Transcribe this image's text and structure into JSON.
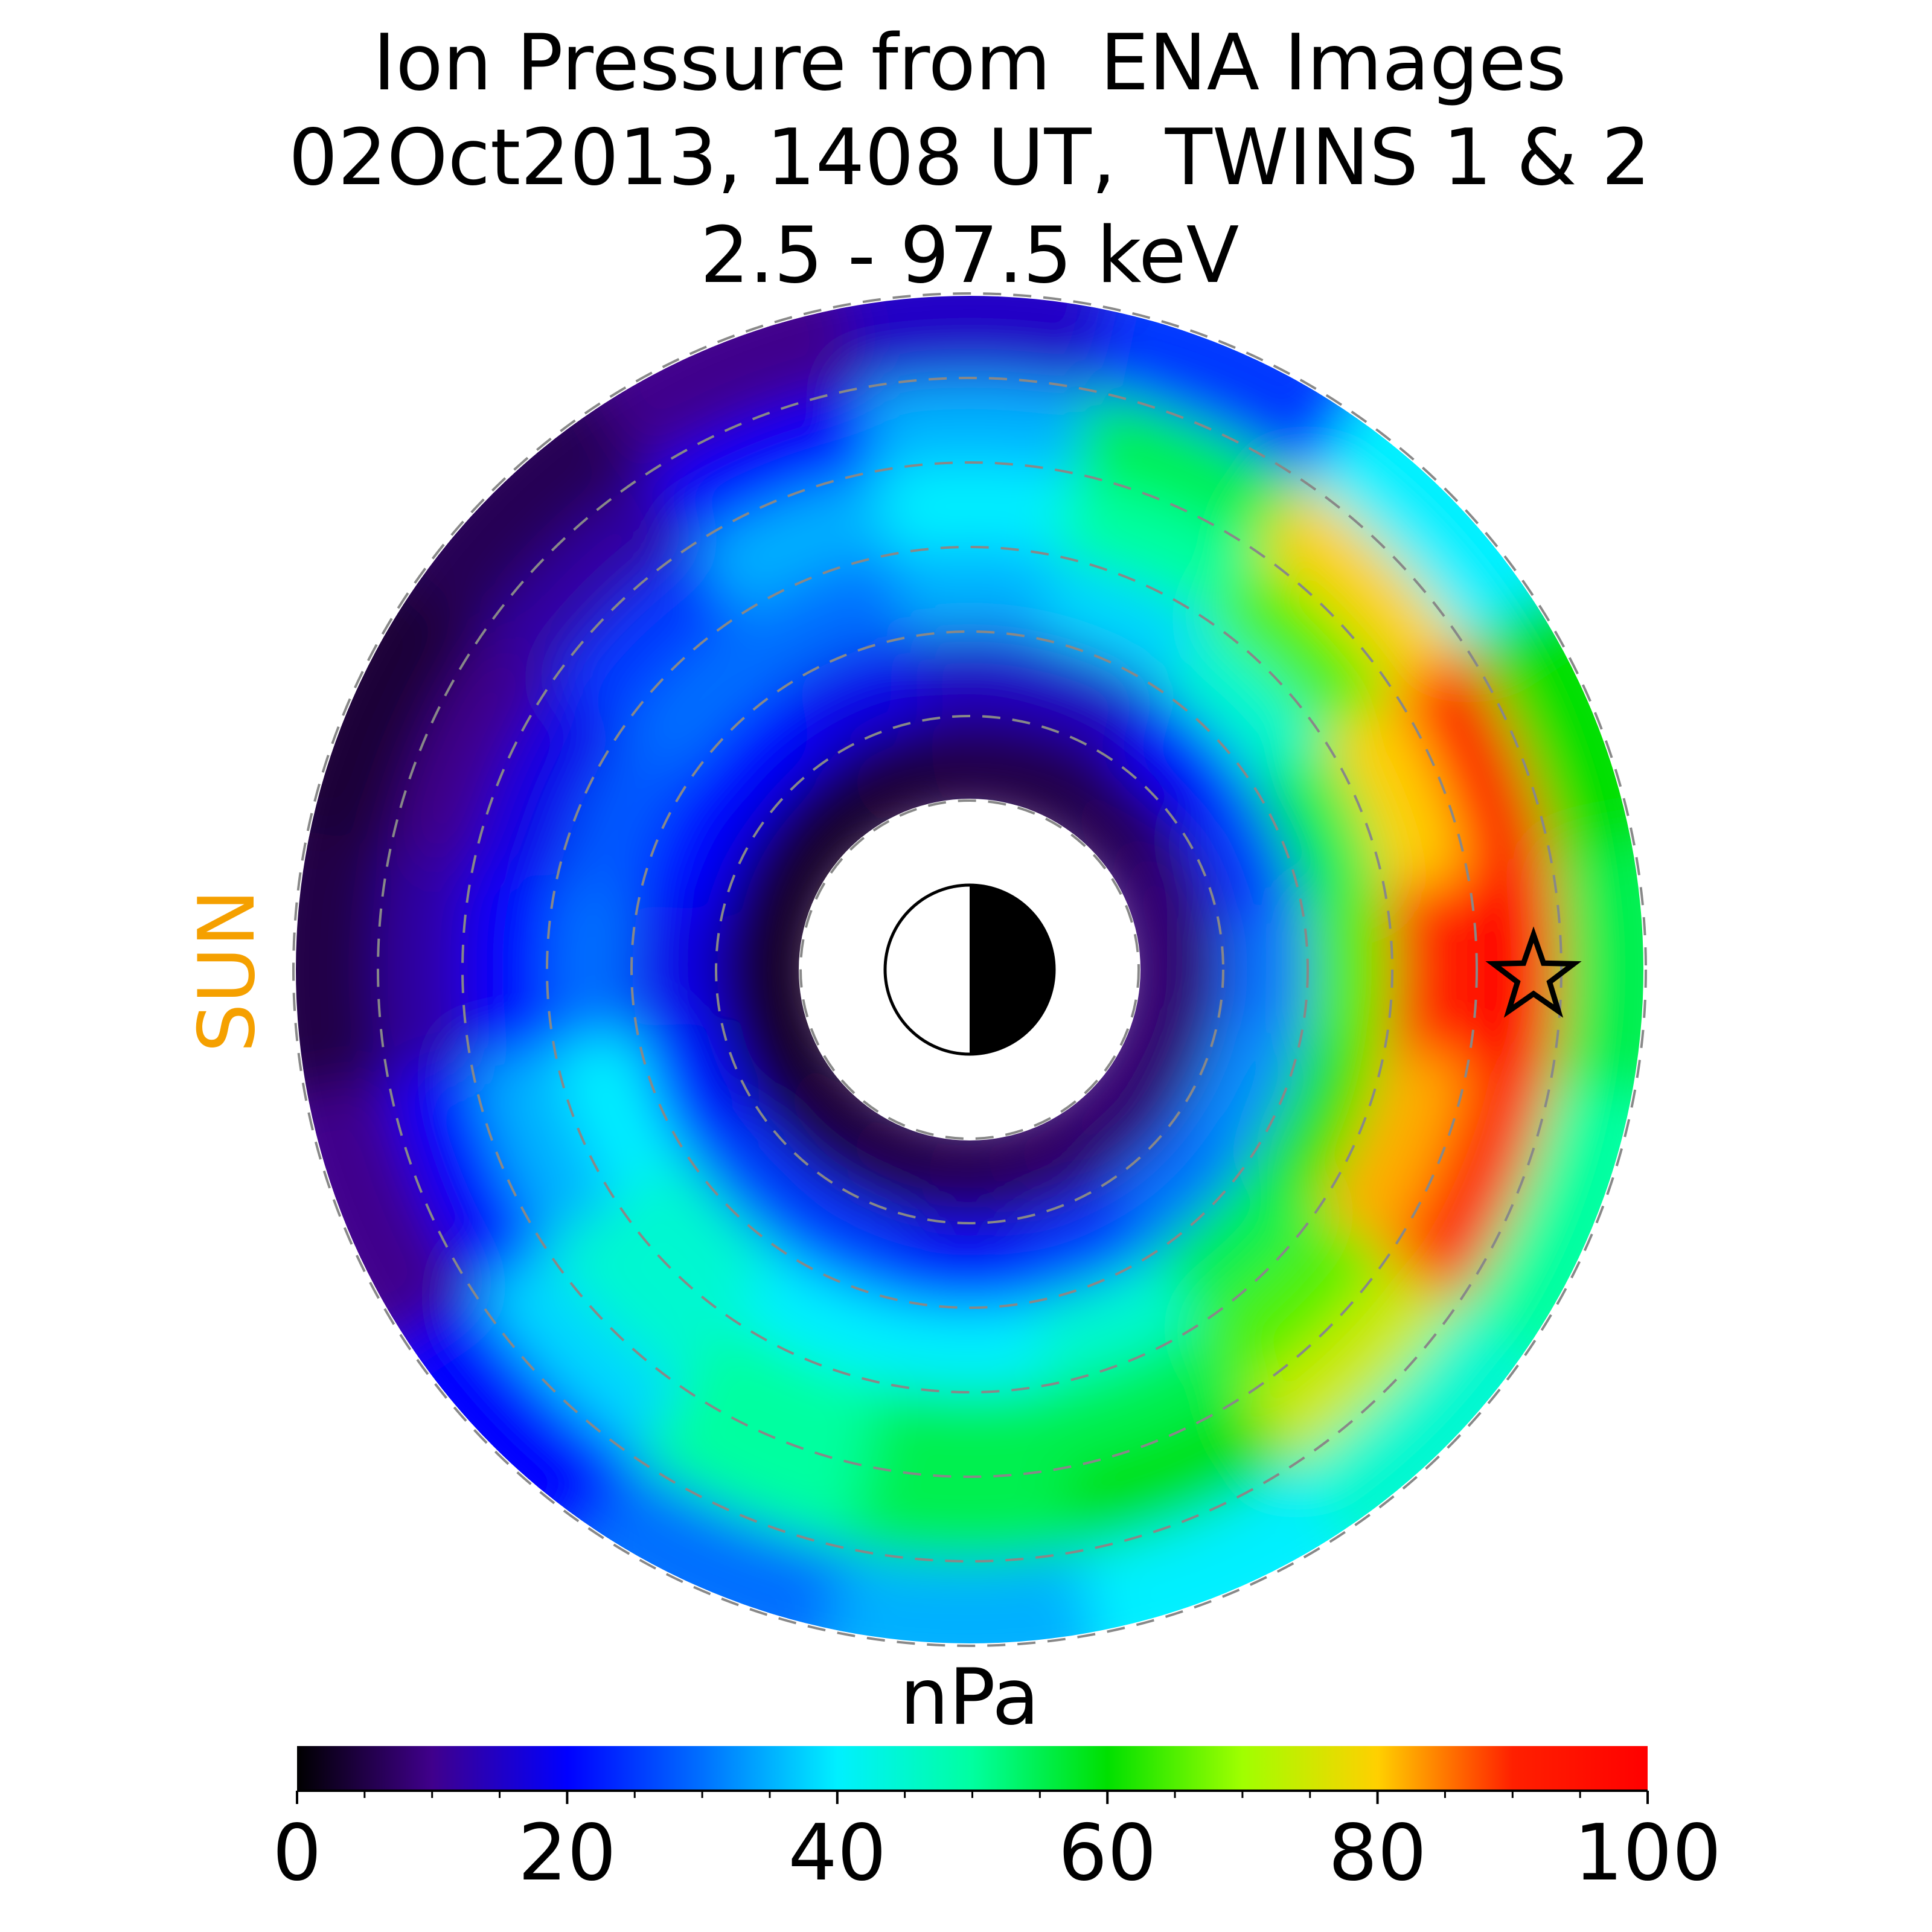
{
  "chart_data": {
    "type": "polar_heatmap",
    "title": [
      "Ion Pressure from  ENA Images",
      "02Oct2013, 1408 UT,  TWINS 1 & 2",
      "2.5 - 97.5 keV"
    ],
    "annotation": "SUN",
    "annotation_color": "#f5a000",
    "values": [
      [
        8,
        8,
        6,
        5,
        5,
        4,
        3,
        3,
        3,
        3,
        4,
        5,
        6,
        7,
        8,
        8
      ],
      [
        30,
        25,
        20,
        15,
        15,
        18,
        20,
        20,
        18,
        22,
        25,
        25,
        22,
        25,
        30,
        32
      ],
      [
        65,
        55,
        45,
        38,
        35,
        30,
        30,
        28,
        30,
        40,
        45,
        40,
        40,
        45,
        55,
        62
      ],
      [
        90,
        80,
        65,
        50,
        40,
        35,
        25,
        18,
        20,
        35,
        45,
        50,
        55,
        55,
        65,
        82
      ],
      [
        100,
        95,
        80,
        55,
        35,
        20,
        12,
        10,
        12,
        20,
        38,
        50,
        55,
        60,
        75,
        92
      ],
      [
        55,
        60,
        40,
        25,
        15,
        10,
        6,
        4,
        5,
        10,
        20,
        30,
        35,
        40,
        45,
        50
      ]
    ],
    "colormap": [
      "#000000",
      "#40008c",
      "#0000ff",
      "#0070ff",
      "#00f0ff",
      "#00ffa0",
      "#00e000",
      "#a0ff00",
      "#ffd000",
      "#ff2000",
      "#ff0000"
    ],
    "colorbar_label": "nPa",
    "clim": [
      0,
      100
    ],
    "cticks": [
      0,
      20,
      40,
      60,
      80,
      100
    ],
    "cticks_minor": [
      5,
      10,
      15,
      25,
      30,
      35,
      45,
      50,
      55,
      65,
      70,
      75,
      85,
      90,
      95
    ]
  }
}
